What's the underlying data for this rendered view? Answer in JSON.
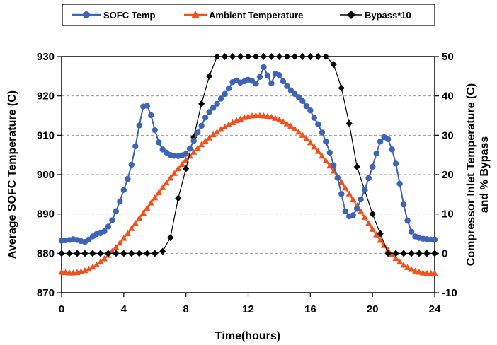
{
  "chart_data": {
    "type": "line",
    "title": "",
    "xlabel": "Time(hours)",
    "ylabel_left": "Average SOFC Temperature (C)",
    "ylabel_right": [
      "Compressor Inlet Temperature (C)",
      "and % Bypass"
    ],
    "xlim": [
      0,
      24
    ],
    "x_ticks": [
      "0",
      "4",
      "8",
      "12",
      "16",
      "20",
      "24"
    ],
    "ylim_left": [
      870,
      930
    ],
    "y_ticks_left": [
      "870",
      "880",
      "890",
      "900",
      "910",
      "920",
      "930"
    ],
    "ylim_right": [
      -10,
      50
    ],
    "y_ticks_right": [
      "-10",
      "0",
      "10",
      "20",
      "30",
      "40",
      "50"
    ],
    "grid": "horizontal dashed",
    "legend_position": "top",
    "series": [
      {
        "name": "SOFC Temp",
        "axis": "left",
        "color": "#3f63b5",
        "marker": "circle",
        "x": [
          0,
          0.25,
          0.5,
          0.75,
          1,
          1.25,
          1.5,
          1.75,
          2,
          2.25,
          2.5,
          2.75,
          3,
          3.25,
          3.5,
          3.75,
          4,
          4.25,
          4.5,
          4.75,
          5,
          5.25,
          5.5,
          5.75,
          6,
          6.25,
          6.5,
          6.75,
          7,
          7.25,
          7.5,
          7.75,
          8,
          8.25,
          8.5,
          8.75,
          9,
          9.25,
          9.5,
          9.75,
          10,
          10.25,
          10.5,
          10.75,
          11,
          11.25,
          11.5,
          11.75,
          12,
          12.25,
          12.5,
          12.75,
          13,
          13.25,
          13.5,
          13.75,
          14,
          14.25,
          14.5,
          14.75,
          15,
          15.25,
          15.5,
          15.75,
          16,
          16.25,
          16.5,
          16.75,
          17,
          17.25,
          17.5,
          17.75,
          18,
          18.25,
          18.5,
          18.75,
          19,
          19.25,
          19.5,
          19.75,
          20,
          20.25,
          20.5,
          20.75,
          21,
          21.25,
          21.5,
          21.75,
          22,
          22.25,
          22.5,
          22.75,
          23,
          23.25,
          23.5,
          23.75,
          24
        ],
        "values": [
          883.2,
          883.3,
          883.4,
          883.6,
          883.4,
          883.1,
          882.9,
          883.5,
          884.3,
          884.9,
          885.1,
          885.6,
          886.8,
          888.4,
          890.7,
          893.2,
          896.1,
          898.9,
          902.5,
          907.2,
          912.5,
          917.3,
          917.5,
          915.1,
          911.3,
          908.2,
          906.4,
          905.6,
          905.0,
          904.8,
          904.7,
          904.9,
          905.3,
          906.6,
          908.6,
          910.7,
          912.4,
          914.5,
          915.9,
          917.0,
          918.0,
          919.3,
          920.5,
          921.9,
          923.5,
          923.9,
          923.4,
          923.7,
          924.1,
          923.8,
          923.1,
          924.8,
          927.3,
          925.2,
          923.2,
          925.6,
          925.3,
          923.7,
          922.5,
          921.4,
          920.5,
          919.7,
          918.7,
          917.4,
          916.3,
          914.4,
          912.8,
          910.7,
          908.4,
          905.6,
          902.4,
          899.2,
          895.1,
          890.7,
          889.4,
          889.7,
          891.3,
          893.7,
          896.2,
          899.1,
          902.0,
          905.4,
          908.4,
          909.5,
          909.0,
          906.4,
          902.8,
          897.7,
          892.4,
          888.3,
          885.5,
          884.3,
          883.9,
          883.7,
          883.6,
          883.5,
          883.5
        ]
      },
      {
        "name": "Ambient Temperature",
        "axis": "right",
        "color": "#f0521e",
        "marker": "triangle",
        "x": [
          0,
          0.25,
          0.5,
          0.75,
          1,
          1.25,
          1.5,
          1.75,
          2,
          2.25,
          2.5,
          2.75,
          3,
          3.25,
          3.5,
          3.75,
          4,
          4.25,
          4.5,
          4.75,
          5,
          5.25,
          5.5,
          5.75,
          6,
          6.25,
          6.5,
          6.75,
          7,
          7.25,
          7.5,
          7.75,
          8,
          8.25,
          8.5,
          8.75,
          9,
          9.25,
          9.5,
          9.75,
          10,
          10.25,
          10.5,
          10.75,
          11,
          11.25,
          11.5,
          11.75,
          12,
          12.25,
          12.5,
          12.75,
          13,
          13.25,
          13.5,
          13.75,
          14,
          14.25,
          14.5,
          14.75,
          15,
          15.25,
          15.5,
          15.75,
          16,
          16.25,
          16.5,
          16.75,
          17,
          17.25,
          17.5,
          17.75,
          18,
          18.25,
          18.5,
          18.75,
          19,
          19.25,
          19.5,
          19.75,
          20,
          20.25,
          20.5,
          20.75,
          21,
          21.25,
          21.5,
          21.75,
          22,
          22.25,
          22.5,
          22.75,
          23,
          23.25,
          23.5,
          23.75,
          24
        ],
        "values": [
          -4.8,
          -4.9,
          -5.0,
          -5.0,
          -4.9,
          -4.7,
          -4.4,
          -4.0,
          -3.5,
          -2.9,
          -2.2,
          -1.4,
          -0.5,
          0.5,
          1.5,
          2.6,
          3.8,
          5.0,
          6.3,
          7.6,
          8.9,
          10.2,
          11.5,
          12.8,
          14.1,
          15.4,
          16.7,
          17.9,
          19.1,
          20.3,
          21.5,
          22.6,
          23.7,
          24.7,
          25.7,
          26.7,
          27.6,
          28.5,
          29.3,
          30.1,
          30.8,
          31.5,
          32.1,
          32.7,
          33.2,
          33.7,
          34.1,
          34.5,
          34.7,
          34.9,
          35.0,
          35.0,
          34.9,
          34.8,
          34.6,
          34.3,
          33.9,
          33.4,
          32.9,
          32.3,
          31.6,
          30.8,
          30.0,
          29.1,
          28.1,
          27.0,
          25.9,
          24.7,
          23.5,
          22.2,
          20.9,
          19.5,
          18.1,
          16.6,
          15.1,
          13.6,
          12.1,
          10.6,
          9.1,
          7.6,
          6.1,
          4.7,
          3.3,
          2.0,
          0.8,
          -0.3,
          -1.3,
          -2.2,
          -3.0,
          -3.6,
          -4.1,
          -4.5,
          -4.8,
          -5.0,
          -5.1,
          -5.1,
          -5.1
        ]
      },
      {
        "name": "Bypass*10",
        "axis": "right",
        "color": "#000000",
        "marker": "diamond",
        "x": [
          0,
          0.5,
          1,
          1.5,
          2,
          2.5,
          3,
          3.5,
          4,
          4.5,
          5,
          5.5,
          6,
          6.5,
          7,
          7.5,
          8,
          8.5,
          9,
          9.5,
          10,
          10.5,
          11,
          11.5,
          12,
          12.5,
          13,
          13.5,
          14,
          14.5,
          15,
          15.5,
          16,
          16.5,
          17,
          17.5,
          18,
          18.5,
          19,
          19.5,
          20,
          20.5,
          21,
          21.5,
          22,
          22.5,
          23,
          23.5,
          24
        ],
        "values": [
          0,
          0,
          0,
          0,
          0,
          0,
          0,
          0,
          0,
          0,
          0,
          0,
          0,
          0.5,
          4,
          14,
          21.5,
          29.5,
          38,
          45,
          50,
          50,
          50,
          50,
          50,
          50,
          50,
          50,
          50,
          50,
          50,
          50,
          50,
          50,
          50,
          48,
          42,
          33,
          22,
          16,
          10,
          5,
          0,
          0,
          0,
          0,
          0,
          0,
          0
        ]
      }
    ]
  }
}
